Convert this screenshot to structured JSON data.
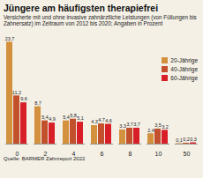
{
  "chart_data": {
    "type": "bar",
    "title": "Jüngere am häufigsten therapiefrei",
    "subtitle": "Versicherte mit und ohne invasive zahnärztliche Leistungen (von Füllungen bis Zahnersatz) im Zeitraum von 2012 bis 2020; Angaben in Prozent",
    "caption": "Quelle: BARMER Zahnreport 2022",
    "categories": [
      "0",
      "2",
      "4",
      "6",
      "8",
      "10",
      "50"
    ],
    "series": [
      {
        "name": "20-Jährige",
        "color": "#d3913e",
        "values": [
          23.7,
          8.7,
          5.4,
          4.3,
          3.3,
          2.4,
          0.1
        ],
        "value_labels": [
          "23,7",
          "8,7",
          "5,4",
          "4,3",
          "3,3",
          "2,4",
          "0,1"
        ]
      },
      {
        "name": "40-Jährige",
        "color": "#c2502c",
        "values": [
          11.2,
          5.4,
          5.8,
          4.7,
          3.7,
          3.5,
          0.2
        ],
        "value_labels": [
          "11,2",
          "5,4",
          "5,8",
          "4,7",
          "3,7",
          "3,5",
          "0,2"
        ]
      },
      {
        "name": "60-Jährige",
        "color": "#d81f27",
        "values": [
          9.6,
          4.9,
          5.1,
          4.6,
          3.7,
          3.2,
          0.3
        ],
        "value_labels": [
          "9,6",
          "4,9",
          "5,1",
          "4,6",
          "3,7",
          "3,2",
          "0,3"
        ]
      }
    ],
    "ylim": [
      0,
      25
    ],
    "data_labels": true,
    "tick_labels": "x",
    "legend": "right"
  }
}
